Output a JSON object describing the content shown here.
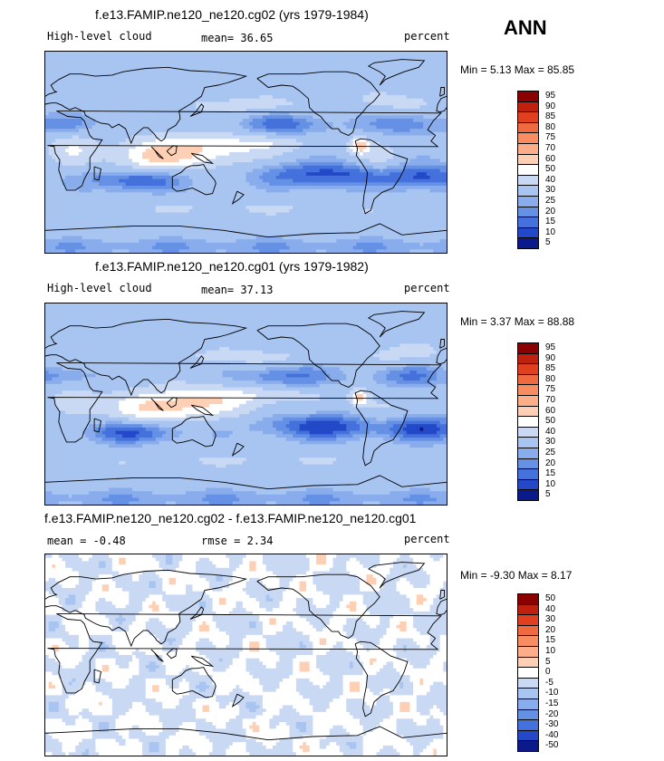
{
  "season": "ANN",
  "panels": [
    {
      "title": "f.e13.FAMIP.ne120_ne120.cg02 (yrs 1979-1984)",
      "left_label": "High-level cloud",
      "mid_label": "mean=  36.65",
      "units": "percent",
      "min_max": "Min =   5.13 Max =  85.85",
      "type": "model"
    },
    {
      "title": "f.e13.FAMIP.ne120_ne120.cg01 (yrs 1979-1982)",
      "left_label": "High-level cloud",
      "mid_label": "mean=  37.13",
      "units": "percent",
      "min_max": "Min =   3.37 Max =  88.88",
      "type": "model"
    },
    {
      "title": "f.e13.FAMIP.ne120_ne120.cg02 - f.e13.FAMIP.ne120_ne120.cg01",
      "left_label": "mean =  -0.48",
      "mid_label": "rmse =   2.34",
      "units": "percent",
      "min_max": "Min =  -9.30 Max =   8.17",
      "type": "diff"
    }
  ],
  "chart_data": [
    {
      "type": "heatmap",
      "title": "f.e13.FAMIP.ne120_ne120.cg02 (yrs 1979-1984)",
      "variable": "High-level cloud",
      "units": "percent",
      "mean": 36.65,
      "min": 5.13,
      "max": 85.85,
      "colorbar_levels": [
        "95",
        "90",
        "85",
        "80",
        "75",
        "70",
        "60",
        "50",
        "40",
        "30",
        "25",
        "20",
        "15",
        "10",
        "5"
      ],
      "colorbar_colors": [
        "#8b0000",
        "#c0200e",
        "#e0401f",
        "#f06a40",
        "#f88d62",
        "#fdae88",
        "#fdd0b5",
        "#ffffff",
        "#c9d9f4",
        "#a8c4f0",
        "#88acec",
        "#6591e5",
        "#4571dc",
        "#2349c8",
        "#0a1a8a"
      ]
    },
    {
      "type": "heatmap",
      "title": "f.e13.FAMIP.ne120_ne120.cg01 (yrs 1979-1982)",
      "variable": "High-level cloud",
      "units": "percent",
      "mean": 37.13,
      "min": 3.37,
      "max": 88.88,
      "colorbar_levels": [
        "95",
        "90",
        "85",
        "80",
        "75",
        "70",
        "60",
        "50",
        "40",
        "30",
        "25",
        "20",
        "15",
        "10",
        "5"
      ],
      "colorbar_colors": [
        "#8b0000",
        "#c0200e",
        "#e0401f",
        "#f06a40",
        "#f88d62",
        "#fdae88",
        "#fdd0b5",
        "#ffffff",
        "#c9d9f4",
        "#a8c4f0",
        "#88acec",
        "#6591e5",
        "#4571dc",
        "#2349c8",
        "#0a1a8a"
      ]
    },
    {
      "type": "heatmap",
      "title": "f.e13.FAMIP.ne120_ne120.cg02 - f.e13.FAMIP.ne120_ne120.cg01",
      "units": "percent",
      "mean": -0.48,
      "rmse": 2.34,
      "min": -9.3,
      "max": 8.17,
      "colorbar_levels": [
        "50",
        "40",
        "30",
        "20",
        "15",
        "10",
        "5",
        "0",
        "-5",
        "-10",
        "-15",
        "-20",
        "-30",
        "-40",
        "-50"
      ],
      "colorbar_colors": [
        "#8b0000",
        "#c0200e",
        "#e0401f",
        "#f06a40",
        "#f88d62",
        "#fdae88",
        "#fdd0b5",
        "#ffffff",
        "#c9d9f4",
        "#a8c4f0",
        "#88acec",
        "#6591e5",
        "#4571dc",
        "#2349c8",
        "#0a1a8a"
      ]
    }
  ]
}
